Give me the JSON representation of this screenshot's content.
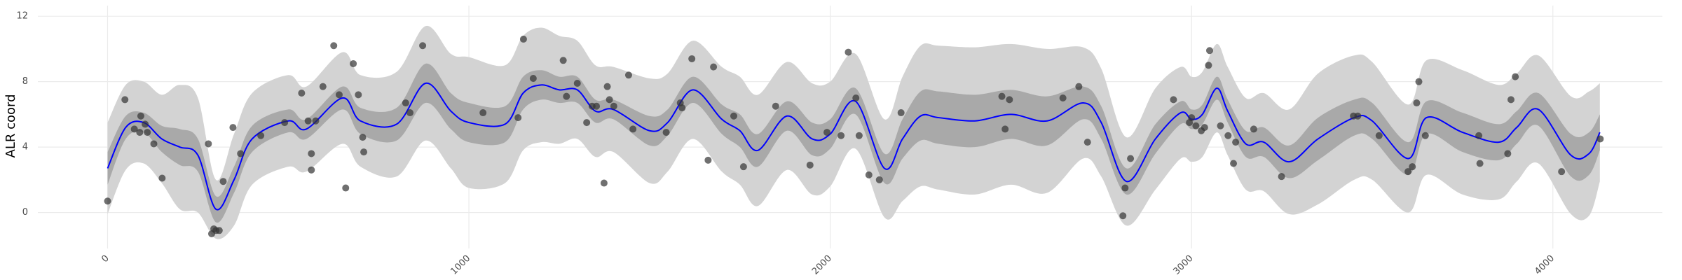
{
  "chart_data": {
    "type": "line",
    "y_axis_label": "ALR coord",
    "xlim": [
      -193,
      4303
    ],
    "ylim": [
      -2.2,
      12.65
    ],
    "xticks": [
      0,
      1000,
      2000,
      3000,
      4000
    ],
    "yticks": [
      0,
      4,
      8,
      12
    ],
    "grid": true,
    "x": [
      0,
      50,
      100,
      150,
      200,
      250,
      300,
      350,
      400,
      500,
      550,
      650,
      700,
      800,
      880,
      950,
      1000,
      1100,
      1150,
      1200,
      1250,
      1300,
      1350,
      1400,
      1500,
      1550,
      1620,
      1700,
      1750,
      1800,
      1880,
      1950,
      2000,
      2070,
      2150,
      2200,
      2250,
      2300,
      2400,
      2500,
      2600,
      2700,
      2750,
      2820,
      2900,
      2970,
      3000,
      3030,
      3070,
      3100,
      3150,
      3200,
      3270,
      3350,
      3450,
      3500,
      3600,
      3650,
      3750,
      3850,
      3900,
      3960,
      4050,
      4100,
      4130
    ],
    "bands": [
      {
        "color": "#d3d3d3",
        "lower": [
          -0.1,
          2.6,
          3.0,
          1.8,
          0.2,
          0.0,
          -1.6,
          -0.8,
          1.7,
          2.8,
          2.5,
          4.2,
          2.8,
          2.2,
          4.4,
          2.7,
          1.5,
          1.8,
          3.8,
          4.3,
          4.2,
          4.5,
          3.4,
          3.7,
          1.8,
          2.5,
          4.5,
          2.5,
          1.7,
          0.4,
          2.6,
          1.1,
          1.6,
          3.9,
          -0.3,
          0.7,
          1.6,
          1.4,
          1.1,
          1.7,
          1.2,
          3.3,
          2.2,
          -0.8,
          1.4,
          3.3,
          3.1,
          3.4,
          4.9,
          3.5,
          1.4,
          1.3,
          -0.1,
          0.5,
          2.0,
          2.0,
          0.0,
          2.3,
          1.1,
          0.8,
          1.9,
          3.0,
          -0.1,
          -0.2,
          1.9
        ],
        "upper": [
          5.5,
          7.8,
          8.0,
          7.2,
          7.8,
          7.0,
          2.0,
          4.8,
          7.3,
          8.4,
          7.7,
          9.8,
          8.4,
          8.6,
          11.4,
          9.7,
          9.5,
          9.0,
          10.8,
          11.3,
          10.8,
          10.5,
          9.0,
          8.9,
          8.2,
          8.5,
          10.5,
          8.9,
          8.3,
          7.2,
          9.2,
          7.9,
          8.0,
          9.7,
          5.7,
          8.3,
          10.2,
          10.2,
          10.1,
          10.3,
          10.0,
          10.1,
          8.8,
          4.6,
          7.6,
          8.9,
          8.3,
          8.6,
          10.3,
          8.9,
          7.0,
          7.3,
          6.3,
          8.5,
          9.6,
          9.2,
          6.6,
          9.3,
          8.7,
          7.8,
          8.5,
          9.6,
          7.1,
          7.4,
          7.9
        ]
      },
      {
        "color": "#a9a9a9",
        "lower": [
          1.7,
          4.5,
          4.9,
          3.7,
          2.9,
          2.5,
          -0.6,
          1.2,
          3.7,
          4.9,
          4.5,
          6.3,
          4.8,
          4.4,
          6.7,
          5.1,
          4.3,
          4.3,
          6.3,
          6.9,
          6.7,
          6.7,
          5.5,
          5.7,
          4.1,
          4.7,
          6.7,
          4.8,
          4.0,
          2.8,
          5.0,
          3.5,
          3.9,
          6.0,
          1.8,
          3.3,
          4.4,
          4.2,
          4.0,
          4.5,
          4.1,
          5.7,
          4.5,
          1.1,
          3.6,
          5.4,
          5.1,
          5.4,
          6.9,
          5.5,
          3.4,
          3.4,
          2.1,
          3.2,
          4.7,
          4.5,
          2.3,
          4.8,
          3.7,
          3.2,
          4.2,
          5.3,
          2.2,
          2.3,
          3.8
        ],
        "upper": [
          3.7,
          5.9,
          6.1,
          5.3,
          5.1,
          4.5,
          1.0,
          2.8,
          5.3,
          6.3,
          5.7,
          7.7,
          6.4,
          6.4,
          9.1,
          7.3,
          6.7,
          6.5,
          8.3,
          8.7,
          8.3,
          8.3,
          6.9,
          6.9,
          5.9,
          6.3,
          8.3,
          6.6,
          6.0,
          4.8,
          6.8,
          5.5,
          5.7,
          7.6,
          3.6,
          5.7,
          7.4,
          7.4,
          7.2,
          7.5,
          7.1,
          7.7,
          6.5,
          2.7,
          5.4,
          6.8,
          6.3,
          6.6,
          8.3,
          6.9,
          5.0,
          5.2,
          4.1,
          5.8,
          6.9,
          6.7,
          4.3,
          6.8,
          6.1,
          5.4,
          6.2,
          7.3,
          4.8,
          4.9,
          6.0
        ]
      }
    ],
    "line": {
      "color": "#0000ff",
      "values": [
        2.7,
        5.2,
        5.5,
        4.5,
        4.0,
        3.5,
        0.2,
        2.0,
        4.5,
        5.6,
        5.1,
        7.0,
        5.6,
        5.4,
        7.9,
        6.2,
        5.5,
        5.4,
        7.3,
        7.8,
        7.5,
        7.5,
        6.2,
        6.3,
        5.0,
        5.5,
        7.5,
        5.7,
        5.0,
        3.8,
        5.9,
        4.5,
        4.8,
        6.8,
        2.7,
        4.5,
        5.9,
        5.8,
        5.6,
        6.0,
        5.6,
        6.7,
        5.5,
        1.9,
        4.5,
        6.1,
        5.7,
        6.0,
        7.6,
        6.2,
        4.2,
        4.3,
        3.1,
        4.5,
        5.8,
        5.6,
        3.3,
        5.8,
        4.9,
        4.3,
        5.2,
        6.3,
        3.5,
        3.6,
        4.9
      ]
    },
    "points": {
      "color": "#333333",
      "x": [
        0,
        48,
        74,
        89,
        92,
        104,
        110,
        128,
        151,
        279,
        288,
        294,
        300,
        309,
        320,
        347,
        368,
        424,
        490,
        537,
        555,
        564,
        564,
        576,
        596,
        626,
        641,
        659,
        680,
        694,
        706,
        709,
        825,
        837,
        872,
        1039,
        1136,
        1151,
        1178,
        1261,
        1270,
        1300,
        1326,
        1341,
        1353,
        1374,
        1383,
        1389,
        1401,
        1442,
        1454,
        1546,
        1585,
        1590,
        1617,
        1662,
        1677,
        1733,
        1760,
        1849,
        1944,
        1991,
        2030,
        2050,
        2071,
        2080,
        2107,
        2136,
        2196,
        2475,
        2484,
        2496,
        2644,
        2688,
        2712,
        2810,
        2816,
        2831,
        2950,
        2994,
        3000,
        3012,
        3027,
        3036,
        3047,
        3050,
        3080,
        3101,
        3116,
        3122,
        3172,
        3249,
        3448,
        3460,
        3519,
        3599,
        3611,
        3623,
        3629,
        3647,
        3795,
        3798,
        3875,
        3884,
        3896,
        4024,
        4131
      ],
      "y": [
        0.7,
        6.9,
        5.1,
        4.9,
        5.9,
        5.4,
        4.9,
        4.2,
        2.1,
        4.2,
        -1.3,
        -1.0,
        -1.1,
        -1.1,
        1.9,
        5.2,
        3.6,
        4.7,
        5.5,
        7.3,
        5.6,
        2.6,
        3.6,
        5.6,
        7.7,
        10.2,
        7.2,
        1.5,
        9.1,
        7.2,
        4.6,
        3.7,
        6.7,
        6.1,
        10.2,
        6.1,
        5.8,
        10.6,
        8.2,
        9.3,
        7.1,
        7.9,
        5.5,
        6.5,
        6.5,
        1.8,
        7.7,
        6.9,
        6.5,
        8.4,
        5.1,
        4.9,
        6.7,
        6.4,
        9.4,
        3.2,
        8.9,
        5.9,
        2.8,
        6.5,
        2.9,
        4.9,
        4.7,
        9.8,
        7.0,
        4.7,
        2.3,
        2.0,
        6.1,
        7.1,
        5.1,
        6.9,
        7.0,
        7.7,
        4.3,
        -0.2,
        1.5,
        3.3,
        6.9,
        5.5,
        5.8,
        5.3,
        5.0,
        5.2,
        9.0,
        9.9,
        5.3,
        4.7,
        3.0,
        4.3,
        5.1,
        2.2,
        5.9,
        5.9,
        4.7,
        2.5,
        2.8,
        6.7,
        8.0,
        4.7,
        4.7,
        3.0,
        3.6,
        6.9,
        8.3,
        2.5,
        4.5
      ]
    }
  }
}
